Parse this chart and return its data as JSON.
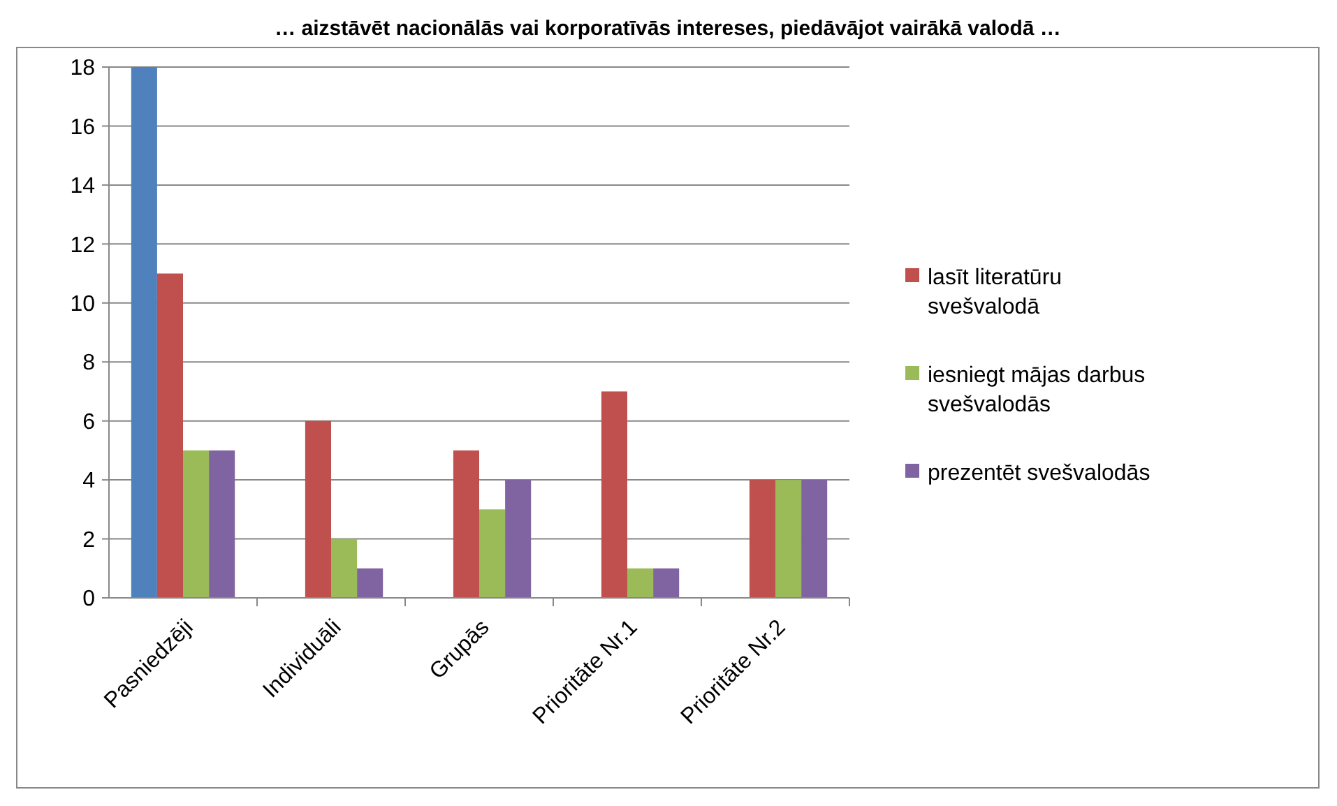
{
  "chart_data": {
    "type": "bar",
    "title": "… aizstāvēt nacionālās vai korporatīvās intereses, piedāvājot vairākā valodā …",
    "categories": [
      "Pasniedzēji",
      "Individuāli",
      "Grupās",
      "Prioritāte Nr.1",
      "Prioritāte Nr.2"
    ],
    "series": [
      {
        "color": "#4f81bd",
        "values": [
          18,
          null,
          null,
          null,
          null
        ]
      },
      {
        "name": "lasīt literatūru svešvalodā",
        "color": "#c0504d",
        "values": [
          11,
          6,
          5,
          7,
          4
        ]
      },
      {
        "name": "iesniegt mājas darbus svešvalodās",
        "color": "#9bbb59",
        "values": [
          5,
          2,
          3,
          1,
          4
        ]
      },
      {
        "name": "prezentēt svešvalodās",
        "color": "#8064a2",
        "values": [
          5,
          1,
          4,
          1,
          4
        ]
      }
    ],
    "ylim": [
      0,
      18
    ],
    "yticks": [
      0,
      2,
      4,
      6,
      8,
      10,
      12,
      14,
      16,
      18
    ],
    "grid": "y",
    "legend": "right"
  }
}
